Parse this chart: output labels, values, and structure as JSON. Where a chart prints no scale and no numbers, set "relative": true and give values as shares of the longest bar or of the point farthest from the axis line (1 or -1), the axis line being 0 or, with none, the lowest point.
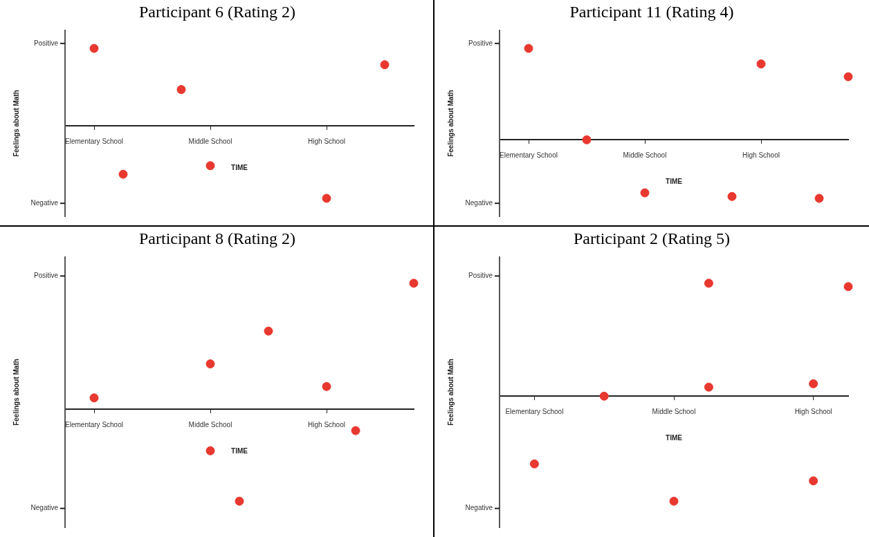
{
  "chart_data": [
    {
      "type": "scatter",
      "title": "Participant 6 (Rating 2)",
      "xlabel": "TIME",
      "ylabel": "Feelings about Math",
      "color": "#e8382f",
      "marker": "circle",
      "grid": false,
      "legend": false,
      "relative": true,
      "categories": [
        null,
        "Elementary School",
        null,
        null,
        null,
        "Middle School",
        null,
        null,
        null,
        "High School",
        null,
        null,
        null
      ],
      "values": [
        null,
        1,
        -0.62,
        null,
        0.47,
        -0.51,
        null,
        null,
        null,
        -0.93,
        null,
        0.79,
        null
      ],
      "annotations": [
        "Positive",
        "Negative"
      ]
    },
    {
      "type": "scatter",
      "title": "Participant 11 (Rating 4)",
      "xlabel": "TIME",
      "ylabel": "Feelings about Math",
      "color": "#e8382f",
      "marker": "circle",
      "grid": false,
      "legend": false,
      "relative": true,
      "categories": [
        null,
        "Elementary School",
        null,
        null,
        null,
        "Middle School",
        null,
        null,
        null,
        "High School",
        null,
        null,
        null
      ],
      "values": [
        null,
        1,
        null,
        0,
        null,
        -0.58,
        null,
        null,
        -0.62,
        0.83,
        null,
        -0.64,
        0.69
      ],
      "annotations": [
        "Positive",
        "Negative"
      ]
    },
    {
      "type": "scatter",
      "title": "Participant 8 (Rating 2)",
      "xlabel": "TIME",
      "ylabel": "Feelings about Math",
      "marker": "circle",
      "grid": false,
      "legend": false,
      "relative": true,
      "categories": [
        null,
        "Elementary School",
        null,
        null,
        null,
        "Middle School",
        null,
        null,
        null,
        "High School",
        null,
        null,
        null
      ],
      "series": [
        {
          "color": "#e8382f",
          "values": [
            null,
            0.09,
            null,
            null,
            null,
            0.36,
            -0.73,
            0.62,
            null,
            0.18,
            -0.17,
            null,
            1
          ]
        },
        {
          "color": "#e8382f",
          "values": [
            null,
            null,
            null,
            null,
            null,
            -0.33,
            null,
            null,
            null,
            null,
            null,
            null,
            null
          ]
        }
      ],
      "annotations": [
        "Positive",
        "Negative"
      ]
    },
    {
      "type": "scatter",
      "title": "Participant 2 (Rating 5)",
      "xlabel": "TIME",
      "ylabel": "Feelings about Math",
      "marker": "circle",
      "grid": false,
      "legend": false,
      "relative": true,
      "categories": [
        null,
        "Elementary School",
        null,
        null,
        null,
        "Middle School",
        null,
        null,
        null,
        "High School",
        null
      ],
      "series": [
        {
          "color": "#e8382f",
          "values": [
            null,
            -0.6,
            null,
            0,
            null,
            -0.93,
            1,
            null,
            null,
            0.11,
            0.97
          ]
        },
        {
          "color": "#e8382f",
          "values": [
            null,
            null,
            null,
            null,
            null,
            null,
            0.08,
            null,
            null,
            -0.75,
            null
          ]
        }
      ],
      "annotations": [
        "Positive",
        "Negative"
      ]
    }
  ]
}
